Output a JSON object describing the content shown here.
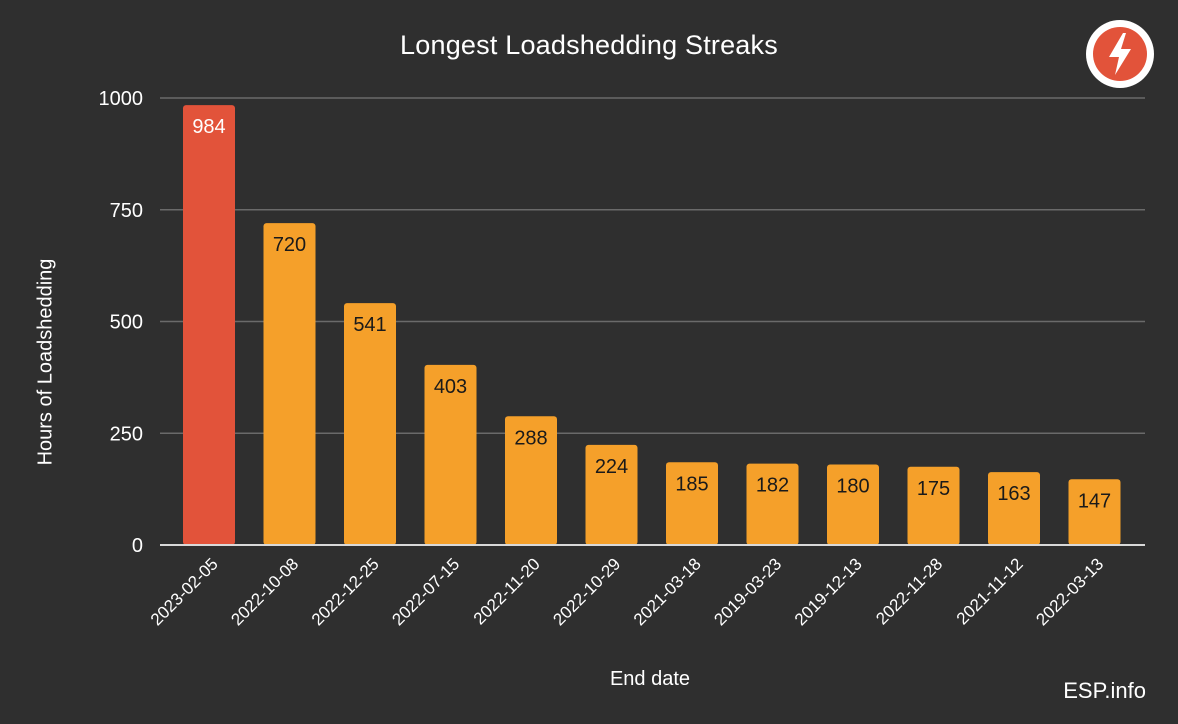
{
  "chart_data": {
    "type": "bar",
    "title": "Longest Loadshedding Streaks",
    "xlabel": "End date",
    "ylabel": "Hours of Loadshedding",
    "categories": [
      "2023-02-05",
      "2022-10-08",
      "2022-12-25",
      "2022-07-15",
      "2022-11-20",
      "2022-10-29",
      "2021-03-18",
      "2019-03-23",
      "2019-12-13",
      "2022-11-28",
      "2021-11-12",
      "2022-03-13"
    ],
    "values": [
      984,
      720,
      541,
      403,
      288,
      224,
      185,
      182,
      180,
      175,
      163,
      147
    ],
    "data_labels": [
      "984",
      "720",
      "541",
      "403",
      "288",
      "224",
      "185",
      "182",
      "180",
      "175",
      "163",
      "147"
    ],
    "ylim": [
      0,
      1000
    ],
    "yticks": [
      0,
      250,
      500,
      750,
      1000
    ],
    "ytick_labels": [
      "0",
      "250",
      "500",
      "750",
      "1000"
    ],
    "grid": true,
    "legend": "none",
    "colors": {
      "highlight": "#e2533a",
      "bar": "#f5a02a",
      "grid": "#6a6a6a",
      "axis": "#d9d9d9",
      "background": "#2f2f2f",
      "highlight_label": "#ffffff",
      "bar_label": "#1a1a1a"
    }
  },
  "branding": {
    "text": "ESP.info",
    "logo_icon": "lightning-bolt-icon"
  }
}
